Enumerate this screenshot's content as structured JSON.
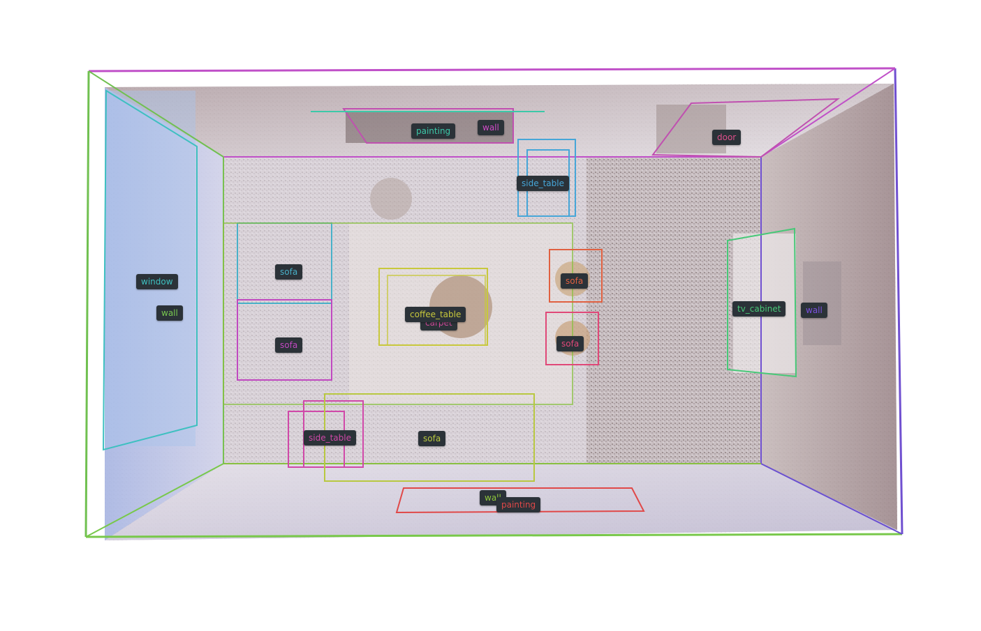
{
  "labels": {
    "painting_top": {
      "text": "painting",
      "color": "#3cc8a8"
    },
    "wall_top": {
      "text": "wall",
      "color": "#d04ac8"
    },
    "door": {
      "text": "door",
      "color": "#e0508c"
    },
    "side_table_top": {
      "text": "side_table",
      "color": "#46a6d8"
    },
    "window": {
      "text": "window",
      "color": "#3ec0c0"
    },
    "wall_left": {
      "text": "wall",
      "color": "#78c850"
    },
    "sofa_left_upper": {
      "text": "sofa",
      "color": "#48b0c8"
    },
    "sofa_left_lower": {
      "text": "sofa",
      "color": "#c048c0"
    },
    "coffee_table": {
      "text": "coffee_table",
      "color": "#c8c83c"
    },
    "carpet": {
      "text": "carpet",
      "color": "#d04a9a"
    },
    "sofa_right_upper": {
      "text": "sofa",
      "color": "#e06040"
    },
    "sofa_right_lower": {
      "text": "sofa",
      "color": "#e04878"
    },
    "tv_cabinet": {
      "text": "tv_cabinet",
      "color": "#48c878"
    },
    "wall_right": {
      "text": "wall",
      "color": "#7a50e0"
    },
    "side_table_bottom": {
      "text": "side_table",
      "color": "#d048a8"
    },
    "sofa_bottom": {
      "text": "sofa",
      "color": "#b8c840"
    },
    "wall_bottom": {
      "text": "wall",
      "color": "#90c83c"
    },
    "painting_bottom": {
      "text": "painting",
      "color": "#e04848"
    }
  }
}
